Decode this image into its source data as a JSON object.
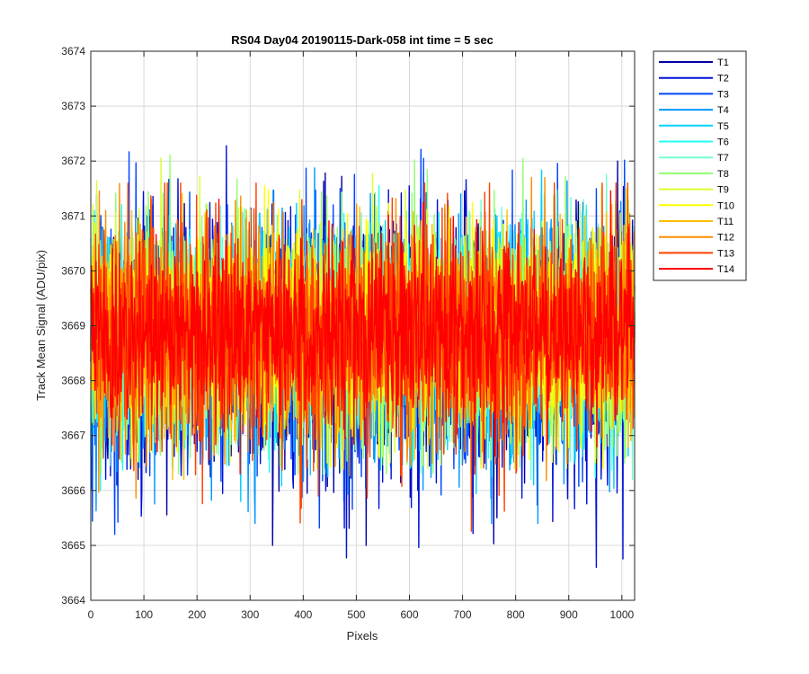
{
  "chart_data": {
    "type": "line",
    "title": "RS04 Day04 20190115-Dark-058 int time = 5 sec",
    "xlabel": "Pixels",
    "ylabel": "Track Mean Signal (ADU/pix)",
    "xlim": [
      0,
      1024
    ],
    "ylim": [
      3664,
      3674
    ],
    "xticks": [
      0,
      100,
      200,
      300,
      400,
      500,
      600,
      700,
      800,
      900,
      1000
    ],
    "yticks": [
      3664,
      3665,
      3666,
      3667,
      3668,
      3669,
      3670,
      3671,
      3672,
      3673,
      3674
    ],
    "grid": true,
    "legend_position": "outside-right-top",
    "n_points": 1024,
    "series": [
      {
        "name": "T1",
        "color": "#0000a8",
        "mean": 3668.6,
        "min": 3665.0,
        "max": 3672.0
      },
      {
        "name": "T2",
        "color": "#0010d8",
        "mean": 3668.6,
        "min": 3664.6,
        "max": 3672.3
      },
      {
        "name": "T3",
        "color": "#0046ff",
        "mean": 3668.7,
        "min": 3665.2,
        "max": 3672.5
      },
      {
        "name": "T4",
        "color": "#0098ff",
        "mean": 3668.7,
        "min": 3665.4,
        "max": 3672.5
      },
      {
        "name": "T5",
        "color": "#00d0ff",
        "mean": 3668.8,
        "min": 3665.8,
        "max": 3672.3
      },
      {
        "name": "T6",
        "color": "#20fff0",
        "mean": 3668.8,
        "min": 3666.0,
        "max": 3672.2
      },
      {
        "name": "T7",
        "color": "#70ffd0",
        "mean": 3668.9,
        "min": 3666.2,
        "max": 3672.5
      },
      {
        "name": "T8",
        "color": "#90ff70",
        "mean": 3668.9,
        "min": 3666.3,
        "max": 3673.0
      },
      {
        "name": "T9",
        "color": "#d8ff30",
        "mean": 3668.9,
        "min": 3666.4,
        "max": 3673.1
      },
      {
        "name": "T10",
        "color": "#ffff00",
        "mean": 3668.9,
        "min": 3666.4,
        "max": 3672.4
      },
      {
        "name": "T11",
        "color": "#ffc000",
        "mean": 3668.9,
        "min": 3666.2,
        "max": 3672.0
      },
      {
        "name": "T12",
        "color": "#ff8c00",
        "mean": 3668.9,
        "min": 3665.5,
        "max": 3671.7
      },
      {
        "name": "T13",
        "color": "#ff4000",
        "mean": 3668.9,
        "min": 3664.7,
        "max": 3671.6
      },
      {
        "name": "T14",
        "color": "#ff0000",
        "mean": 3668.9,
        "min": 3666.3,
        "max": 3671.7
      }
    ]
  }
}
